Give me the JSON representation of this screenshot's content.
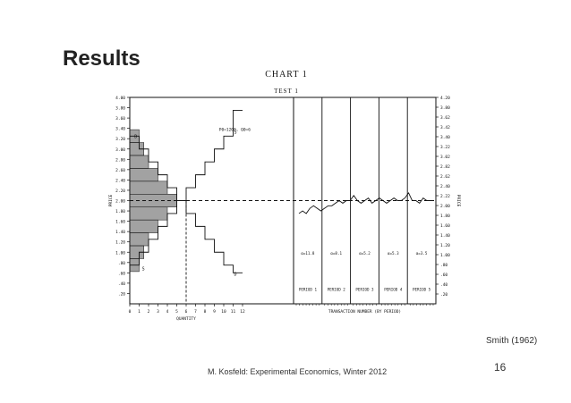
{
  "slide": {
    "title": "Results",
    "citation": "Smith (1962)",
    "page_number": "16",
    "footer": "M. Kosfeld: Experimental Economics, Winter 2012"
  },
  "chart_data": {
    "type": "line",
    "title": "CHART 1",
    "subtitle": "TEST 1",
    "ylabel": "PRICE",
    "ylim": [
      0.0,
      4.0
    ],
    "y_ticks_left": [
      "4.00",
      "3.80",
      "3.60",
      "3.40",
      "3.20",
      "3.00",
      "2.80",
      "2.60",
      "2.40",
      "2.20",
      "2.00",
      "1.80",
      "1.60",
      "1.40",
      "1.20",
      "1.00",
      ".80",
      ".60",
      ".40",
      ".20"
    ],
    "y_ticks_right": [
      "4.20",
      "3.80",
      "3.62",
      "3.42",
      "3.40",
      "3.22",
      "3.02",
      "2.82",
      "2.62",
      "2.40",
      "2.22",
      "2.00",
      "1.80",
      "1.60",
      "1.40",
      "1.20",
      "1.00",
      ".80",
      ".60",
      ".40",
      ".20"
    ],
    "left_panel": {
      "xlabel": "QUANTITY",
      "x_ticks": [
        "0",
        "1",
        "2",
        "3",
        "4",
        "5",
        "6",
        "7",
        "8",
        "9",
        "10",
        "11",
        "12"
      ],
      "equilibrium_price": 2.0,
      "annotation": "P0=1200, Q0=6",
      "label_D_top": "D",
      "label_S_bottom": "S",
      "label_S_top": "S",
      "label_D_bottom": "D",
      "supply_steps": [
        {
          "q": 0,
          "p": 0.75
        },
        {
          "q": 1,
          "p": 1.0
        },
        {
          "q": 2,
          "p": 1.25
        },
        {
          "q": 3,
          "p": 1.5
        },
        {
          "q": 4,
          "p": 1.75
        },
        {
          "q": 5,
          "p": 2.0
        },
        {
          "q": 6,
          "p": 2.25
        },
        {
          "q": 7,
          "p": 2.5
        },
        {
          "q": 8,
          "p": 2.75
        },
        {
          "q": 9,
          "p": 3.0
        },
        {
          "q": 10,
          "p": 3.25
        },
        {
          "q": 11,
          "p": 3.75
        }
      ],
      "demand_steps": [
        {
          "q": 0,
          "p": 3.25
        },
        {
          "q": 1,
          "p": 3.0
        },
        {
          "q": 2,
          "p": 2.75
        },
        {
          "q": 3,
          "p": 2.5
        },
        {
          "q": 4,
          "p": 2.25
        },
        {
          "q": 5,
          "p": 2.0
        },
        {
          "q": 6,
          "p": 1.75
        },
        {
          "q": 7,
          "p": 1.5
        },
        {
          "q": 8,
          "p": 1.25
        },
        {
          "q": 9,
          "p": 1.0
        },
        {
          "q": 10,
          "p": 0.75
        },
        {
          "q": 11,
          "p": 0.6
        }
      ]
    },
    "right_panel": {
      "xlabel": "TRANSACTION NUMBER (BY PERIOD)",
      "periods": [
        {
          "label": "PERIOD 1",
          "alpha": "α=11.8"
        },
        {
          "label": "PERIOD 2",
          "alpha": "α=8.1"
        },
        {
          "label": "PERIOD 3",
          "alpha": "α=5.2"
        },
        {
          "label": "PERIOD 4",
          "alpha": "α=5.3"
        },
        {
          "label": "PERIOD 5",
          "alpha": "α=3.5"
        }
      ],
      "transaction_prices": [
        1.75,
        1.8,
        1.75,
        1.85,
        1.9,
        1.85,
        1.8,
        1.85,
        1.9,
        1.9,
        1.95,
        2.0,
        1.95,
        2.0,
        2.0,
        2.1,
        2.0,
        1.95,
        2.0,
        2.05,
        1.95,
        2.0,
        2.05,
        2.0,
        1.95,
        2.0,
        2.05,
        2.0,
        2.0,
        2.05,
        2.15,
        2.0,
        2.0,
        1.95,
        2.05,
        2.0,
        2.0
      ],
      "equilibrium_price": 2.0
    }
  }
}
